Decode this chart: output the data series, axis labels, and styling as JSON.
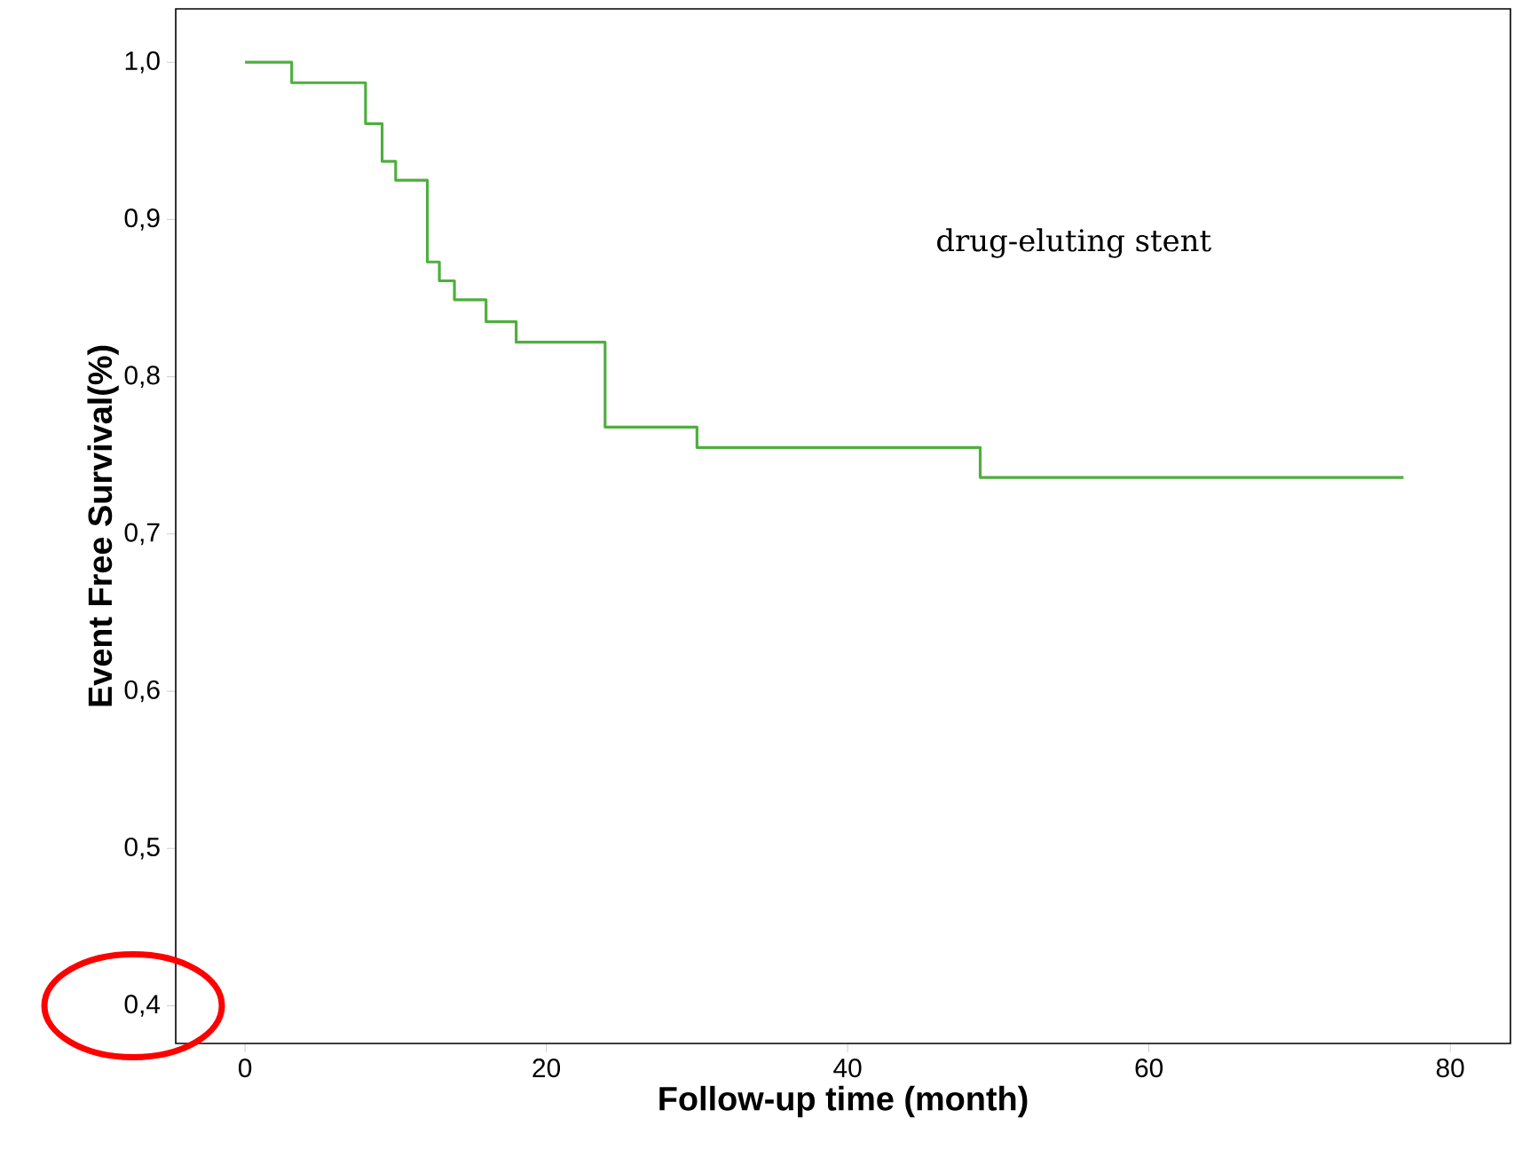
{
  "chart_data": {
    "type": "step",
    "xlabel": "Follow-up time (month)",
    "ylabel": "Event Free Survival(%)",
    "x": [
      0,
      3.1,
      8.0,
      9.1,
      10.0,
      12.1,
      12.9,
      13.9,
      16.0,
      18.0,
      23.9,
      30.0,
      48.8,
      76.9
    ],
    "series": [
      {
        "name": "drug-eluting stent",
        "color": "#4fae3f",
        "values": [
          1.0,
          0.987,
          0.961,
          0.937,
          0.925,
          0.873,
          0.861,
          0.849,
          0.835,
          0.822,
          0.768,
          0.755,
          0.736,
          0.736
        ]
      }
    ],
    "xlim": [
      -4.6,
      84
    ],
    "ylim": [
      0.376,
      1.034
    ],
    "xticks": [
      0,
      20,
      40,
      60,
      80
    ],
    "yticks": [
      {
        "value": 0.4,
        "label": "0,4"
      },
      {
        "value": 0.5,
        "label": "0,5"
      },
      {
        "value": 0.6,
        "label": "0,6"
      },
      {
        "value": 0.7,
        "label": "0,7"
      },
      {
        "value": 0.8,
        "label": "0,8"
      },
      {
        "value": 0.9,
        "label": "0,9"
      },
      {
        "value": 1.0,
        "label": "1,0"
      }
    ],
    "grid": false,
    "legend": false
  }
}
